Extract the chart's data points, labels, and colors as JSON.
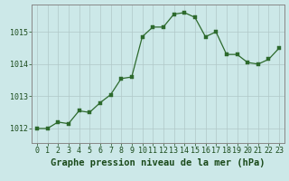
{
  "x": [
    0,
    1,
    2,
    3,
    4,
    5,
    6,
    7,
    8,
    9,
    10,
    11,
    12,
    13,
    14,
    15,
    16,
    17,
    18,
    19,
    20,
    21,
    22,
    23
  ],
  "y": [
    1012.0,
    1012.0,
    1012.2,
    1012.15,
    1012.55,
    1012.5,
    1012.8,
    1013.05,
    1013.55,
    1013.6,
    1014.85,
    1015.15,
    1015.15,
    1015.55,
    1015.6,
    1015.45,
    1014.85,
    1015.0,
    1014.3,
    1014.3,
    1014.05,
    1014.0,
    1014.15,
    1014.5
  ],
  "line_color": "#2d6a2d",
  "marker_color": "#2d6a2d",
  "bg_color": "#cce8e8",
  "grid_color": "#b0c8c8",
  "xlabel": "Graphe pression niveau de la mer (hPa)",
  "xlabel_fontsize": 7.5,
  "xlabel_color": "#1a4a1a",
  "ylabel_ticks": [
    1012,
    1013,
    1014,
    1015
  ],
  "ylim": [
    1011.55,
    1015.85
  ],
  "xlim": [
    -0.5,
    23.5
  ],
  "xticks": [
    0,
    1,
    2,
    3,
    4,
    5,
    6,
    7,
    8,
    9,
    10,
    11,
    12,
    13,
    14,
    15,
    16,
    17,
    18,
    19,
    20,
    21,
    22,
    23
  ],
  "xtick_labels": [
    "0",
    "1",
    "2",
    "3",
    "4",
    "5",
    "6",
    "7",
    "8",
    "9",
    "10",
    "11",
    "12",
    "13",
    "14",
    "15",
    "16",
    "17",
    "18",
    "19",
    "20",
    "21",
    "22",
    "23"
  ],
  "ytick_labels": [
    "1012",
    "1013",
    "1014",
    "1015"
  ],
  "tick_fontsize": 6.0,
  "tick_color": "#1a4a1a",
  "spine_color": "#888888",
  "linewidth": 0.9,
  "markersize": 2.2
}
